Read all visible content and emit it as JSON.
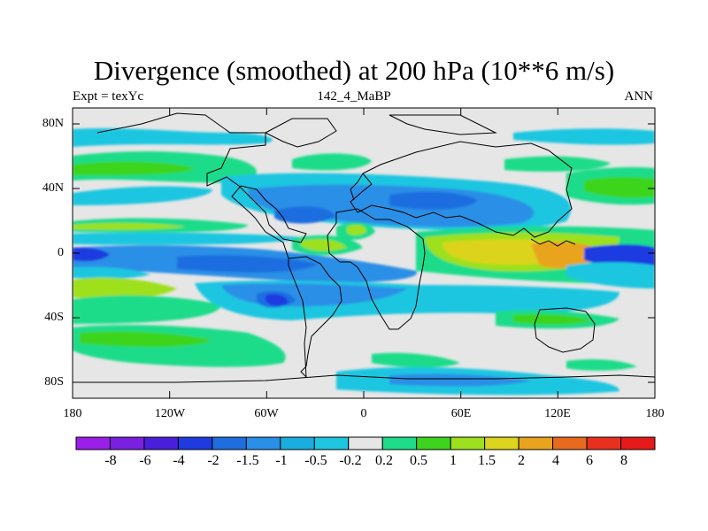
{
  "title": "Divergence (smoothed) at 200 hPa (10**6 m/s)",
  "subtitle_left": "Expt = texYc",
  "subtitle_center": "142_4_MaBP",
  "subtitle_right": "ANN",
  "lat_ticks": [
    "80N",
    "40N",
    "0",
    "40S",
    "80S"
  ],
  "lon_ticks": [
    "180",
    "120W",
    "60W",
    "0",
    "60E",
    "120E",
    "180"
  ],
  "colorbar": {
    "labels": [
      "-8",
      "-6",
      "-4",
      "-2",
      "-1.5",
      "-1",
      "-0.5",
      "-0.2",
      "0.2",
      "0.5",
      "1",
      "1.5",
      "2",
      "4",
      "6",
      "8"
    ],
    "colors": [
      "#9a1fe8",
      "#7a20e0",
      "#4a1fdc",
      "#1f3be0",
      "#1f6ee0",
      "#2a8fe6",
      "#1aaee0",
      "#1fc6e0",
      "#e6e6e6",
      "#1edc8a",
      "#3ed41e",
      "#9ee01e",
      "#dcd41e",
      "#e8a41e",
      "#e86a1e",
      "#e8301e",
      "#e61a1a"
    ]
  },
  "map_colors": {
    "background": "#e6e6e6",
    "deep_negative": "#1f3be0",
    "negative": "#2a8fe6",
    "weak_negative": "#1fc6e0",
    "weak_positive": "#1edc8a",
    "positive": "#3ed41e",
    "moderate_positive": "#9ee01e",
    "strong_positive": "#dcd41e",
    "very_strong_positive": "#e8a41e"
  }
}
